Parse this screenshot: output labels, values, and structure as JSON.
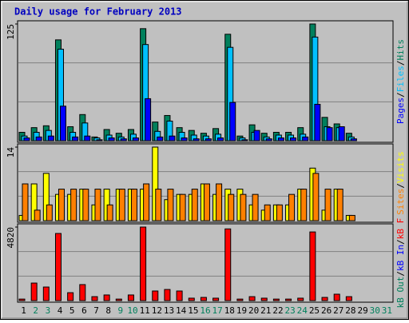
{
  "title": "Daily usage for February 2013",
  "chart_data": [
    {
      "type": "bar",
      "ylim": [
        0,
        125
      ],
      "yticks": [
        125
      ],
      "legend_separator": "/",
      "series": [
        {
          "name": "Hits",
          "color": "#00805c",
          "values": [
            9,
            14,
            16,
            108,
            15,
            28,
            4,
            12,
            8,
            12,
            120,
            20,
            27,
            14,
            11,
            8,
            13,
            114,
            5,
            17,
            8,
            9,
            9,
            14,
            125,
            25,
            18,
            8,
            null,
            null,
            null
          ]
        },
        {
          "name": "Files",
          "color": "#00c0ff",
          "values": [
            5,
            9,
            11,
            98,
            9,
            19,
            3,
            6,
            4,
            7,
            103,
            10,
            21,
            9,
            6,
            5,
            7,
            100,
            3,
            9,
            4,
            6,
            6,
            7,
            111,
            15,
            14,
            4,
            null,
            null,
            null
          ]
        },
        {
          "name": "Pages",
          "color": "#0000ff",
          "values": [
            3,
            4,
            5,
            37,
            4,
            5,
            1,
            3,
            2,
            3,
            45,
            4,
            5,
            3,
            2,
            2,
            3,
            41,
            1,
            11,
            2,
            3,
            3,
            4,
            39,
            14,
            15,
            2,
            null,
            null,
            null
          ]
        }
      ]
    },
    {
      "type": "bar",
      "ylim": [
        0,
        14
      ],
      "yticks": [
        14
      ],
      "legend_separator": "/",
      "series": [
        {
          "name": "Visits",
          "color": "#ffff00",
          "values": [
            1,
            7,
            9,
            5,
            5,
            6,
            3,
            6,
            6,
            6,
            6,
            14,
            4,
            5,
            5,
            7,
            5,
            6,
            6,
            3,
            2,
            3,
            3,
            6,
            10,
            2,
            6,
            1,
            null,
            null,
            null
          ]
        },
        {
          "name": "Sites",
          "color": "#ff8000",
          "values": [
            7,
            2,
            3,
            6,
            6,
            6,
            6,
            3,
            6,
            6,
            7,
            6,
            6,
            5,
            6,
            7,
            7,
            5,
            5,
            5,
            3,
            3,
            5,
            6,
            9,
            6,
            6,
            1,
            null,
            null,
            null
          ]
        }
      ]
    },
    {
      "type": "bar",
      "ylim": [
        0,
        4820
      ],
      "yticks": [
        4820
      ],
      "legend_separator": "/",
      "categories": [
        "1",
        "2",
        "3",
        "4",
        "5",
        "6",
        "7",
        "8",
        "9",
        "10",
        "11",
        "12",
        "13",
        "14",
        "15",
        "16",
        "17",
        "18",
        "19",
        "20",
        "21",
        "22",
        "23",
        "24",
        "25",
        "26",
        "27",
        "28",
        "29",
        "30",
        "31"
      ],
      "category_colors": [
        "#000",
        "#00805c",
        "#00805c",
        "#000",
        "#000",
        "#000",
        "#000",
        "#000",
        "#00805c",
        "#00805c",
        "#000",
        "#000",
        "#000",
        "#000",
        "#000",
        "#00805c",
        "#00805c",
        "#000",
        "#000",
        "#000",
        "#000",
        "#000",
        "#00805c",
        "#00805c",
        "#000",
        "#000",
        "#000",
        "#000",
        "#000",
        "#00805c",
        "#00805c"
      ],
      "series": [
        {
          "name": "kB F",
          "color": "#ff0000",
          "values": [
            100,
            1150,
            890,
            4400,
            520,
            1050,
            260,
            370,
            100,
            370,
            4820,
            630,
            730,
            630,
            160,
            210,
            160,
            4700,
            100,
            260,
            160,
            100,
            100,
            160,
            4500,
            210,
            420,
            260,
            null,
            null,
            null
          ]
        },
        {
          "name": "kB In",
          "color": "#0000ff",
          "values": [
            0,
            0,
            0,
            0,
            0,
            0,
            0,
            0,
            0,
            0,
            0,
            0,
            0,
            0,
            0,
            0,
            0,
            0,
            0,
            0,
            0,
            0,
            0,
            0,
            0,
            0,
            0,
            0,
            null,
            null,
            null
          ]
        },
        {
          "name": "kB Out",
          "color": "#00805c",
          "values": [
            0,
            0,
            0,
            0,
            0,
            0,
            0,
            0,
            0,
            0,
            0,
            0,
            0,
            0,
            0,
            0,
            0,
            0,
            0,
            0,
            0,
            0,
            0,
            0,
            0,
            0,
            0,
            0,
            null,
            null,
            null
          ]
        }
      ]
    }
  ]
}
